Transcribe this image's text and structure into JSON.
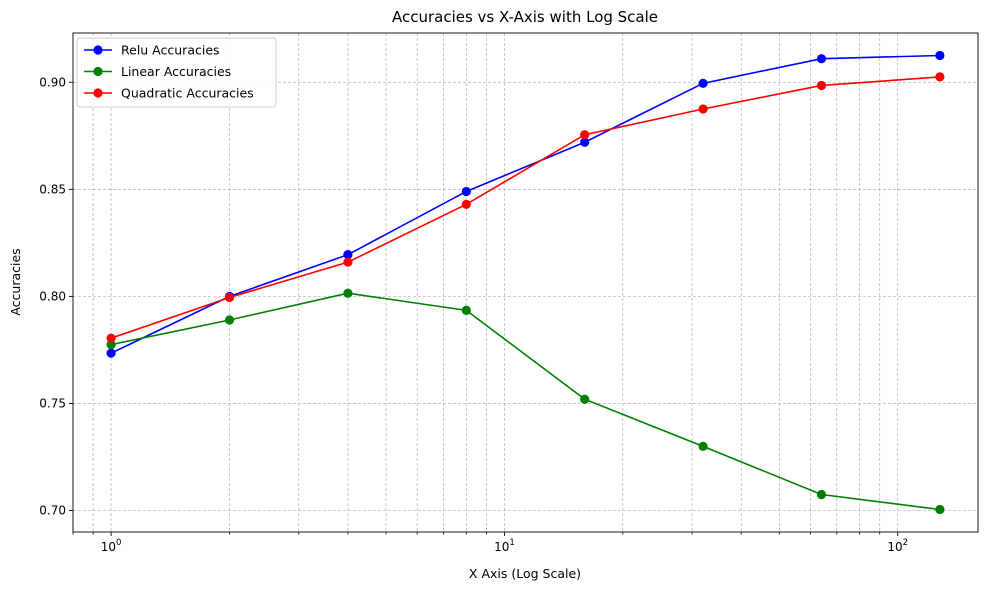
{
  "chart_data": {
    "type": "line",
    "title": "Accuracies vs X-Axis with Log Scale",
    "xlabel": "X Axis (Log Scale)",
    "ylabel": "Accuracies",
    "xscale": "log",
    "xlim": [
      0.8,
      160
    ],
    "ylim": [
      0.69,
      0.923
    ],
    "grid": true,
    "legend_position": "top-left",
    "x": [
      1,
      2,
      4,
      8,
      16,
      32,
      64,
      128
    ],
    "x_ticks": [
      {
        "value": 1,
        "base": "10",
        "exp": "0"
      },
      {
        "value": 10,
        "base": "10",
        "exp": "1"
      },
      {
        "value": 100,
        "base": "10",
        "exp": "2"
      }
    ],
    "y_ticks": [
      {
        "value": 0.7,
        "label": "0.70"
      },
      {
        "value": 0.75,
        "label": "0.75"
      },
      {
        "value": 0.8,
        "label": "0.80"
      },
      {
        "value": 0.85,
        "label": "0.85"
      },
      {
        "value": 0.9,
        "label": "0.90"
      }
    ],
    "series": [
      {
        "name": "Relu Accuracies",
        "color": "#0000ff",
        "values": [
          0.7735,
          0.8,
          0.8195,
          0.849,
          0.872,
          0.8995,
          0.911,
          0.9125
        ]
      },
      {
        "name": "Linear Accuracies",
        "color": "#008000",
        "values": [
          0.7775,
          0.789,
          0.8015,
          0.7935,
          0.752,
          0.73,
          0.7075,
          0.7005
        ]
      },
      {
        "name": "Quadratic Accuracies",
        "color": "#ff0000",
        "values": [
          0.7805,
          0.7995,
          0.816,
          0.843,
          0.8755,
          0.8875,
          0.8985,
          0.9025
        ]
      }
    ]
  }
}
